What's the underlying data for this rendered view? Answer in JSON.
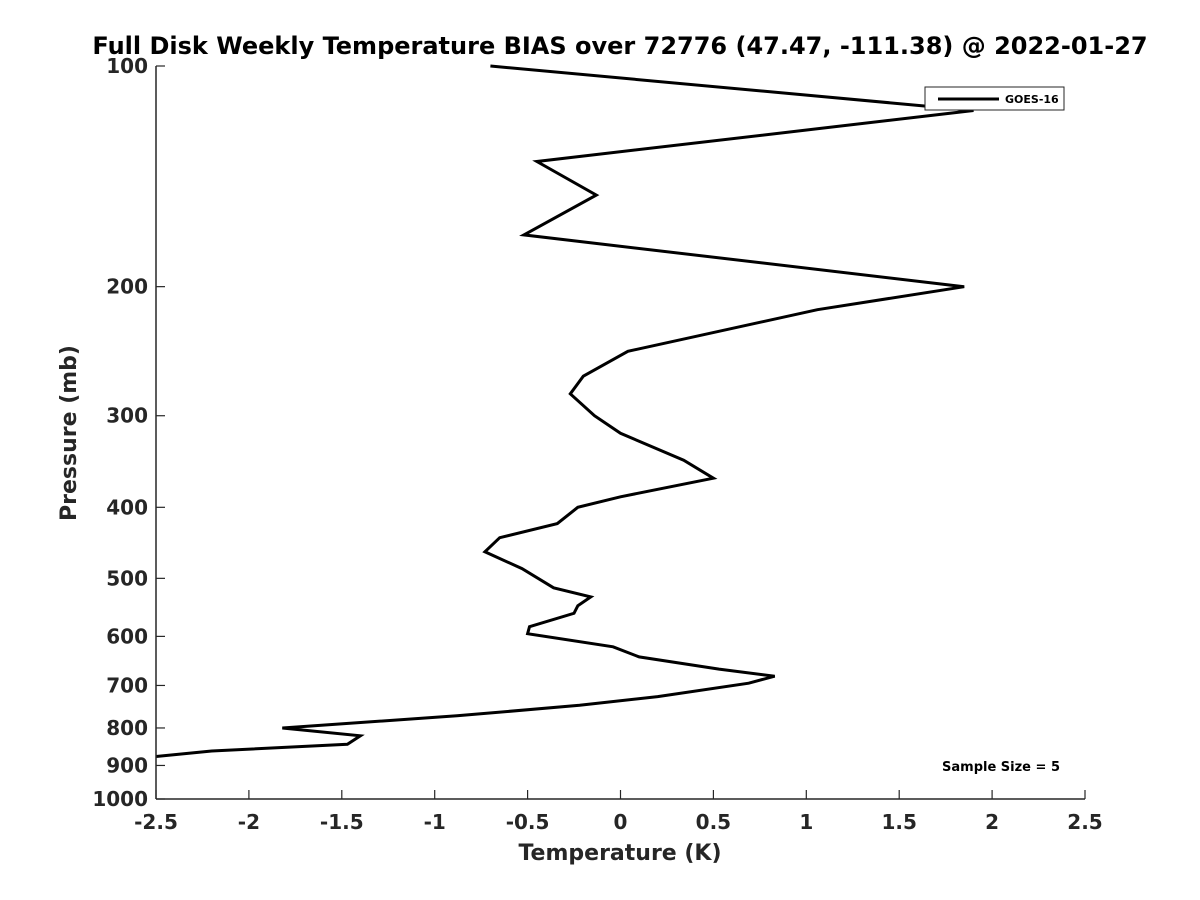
{
  "chart_data": {
    "type": "line",
    "title": "Full Disk Weekly Temperature BIAS over 72776 (47.47, -111.38) @ 2022-01-27",
    "xlabel": "Temperature (K)",
    "ylabel": "Pressure (mb)",
    "xlim": [
      -2.5,
      2.5
    ],
    "ylim": [
      1000,
      100
    ],
    "y_scale": "log",
    "x_ticks": [
      "-2.5",
      "-2",
      "-1.5",
      "-1",
      "-0.5",
      "0",
      "0.5",
      "1",
      "1.5",
      "2",
      "2.5"
    ],
    "y_ticks": [
      "100",
      "200",
      "300",
      "400",
      "500",
      "600",
      "700",
      "800",
      "900",
      "1000"
    ],
    "grid": false,
    "legend": {
      "position": "top-right",
      "entries": [
        "GOES-16"
      ]
    },
    "annotation": "Sample Size = 5",
    "series": [
      {
        "name": "GOES-16",
        "color": "#000000",
        "points": [
          [
            -0.7,
            100
          ],
          [
            1.9,
            115
          ],
          [
            -0.45,
            135
          ],
          [
            -0.13,
            150
          ],
          [
            -0.52,
            170
          ],
          [
            1.85,
            200
          ],
          [
            1.06,
            215
          ],
          [
            0.04,
            245
          ],
          [
            -0.2,
            265
          ],
          [
            -0.27,
            280
          ],
          [
            -0.14,
            300
          ],
          [
            0.0,
            317
          ],
          [
            0.34,
            345
          ],
          [
            0.5,
            365
          ],
          [
            0.0,
            387
          ],
          [
            -0.23,
            400
          ],
          [
            -0.34,
            421
          ],
          [
            -0.65,
            440
          ],
          [
            -0.73,
            460
          ],
          [
            -0.53,
            485
          ],
          [
            -0.36,
            515
          ],
          [
            -0.16,
            530
          ],
          [
            -0.23,
            545
          ],
          [
            -0.25,
            558
          ],
          [
            -0.49,
            582
          ],
          [
            -0.5,
            595
          ],
          [
            -0.04,
            620
          ],
          [
            0.1,
            640
          ],
          [
            0.53,
            665
          ],
          [
            0.83,
            680
          ],
          [
            0.69,
            695
          ],
          [
            0.2,
            725
          ],
          [
            -0.22,
            745
          ],
          [
            -0.88,
            770
          ],
          [
            -1.82,
            800
          ],
          [
            -1.4,
            820
          ],
          [
            -1.47,
            842
          ],
          [
            -2.2,
            860
          ],
          [
            -2.5,
            875
          ]
        ]
      }
    ]
  }
}
